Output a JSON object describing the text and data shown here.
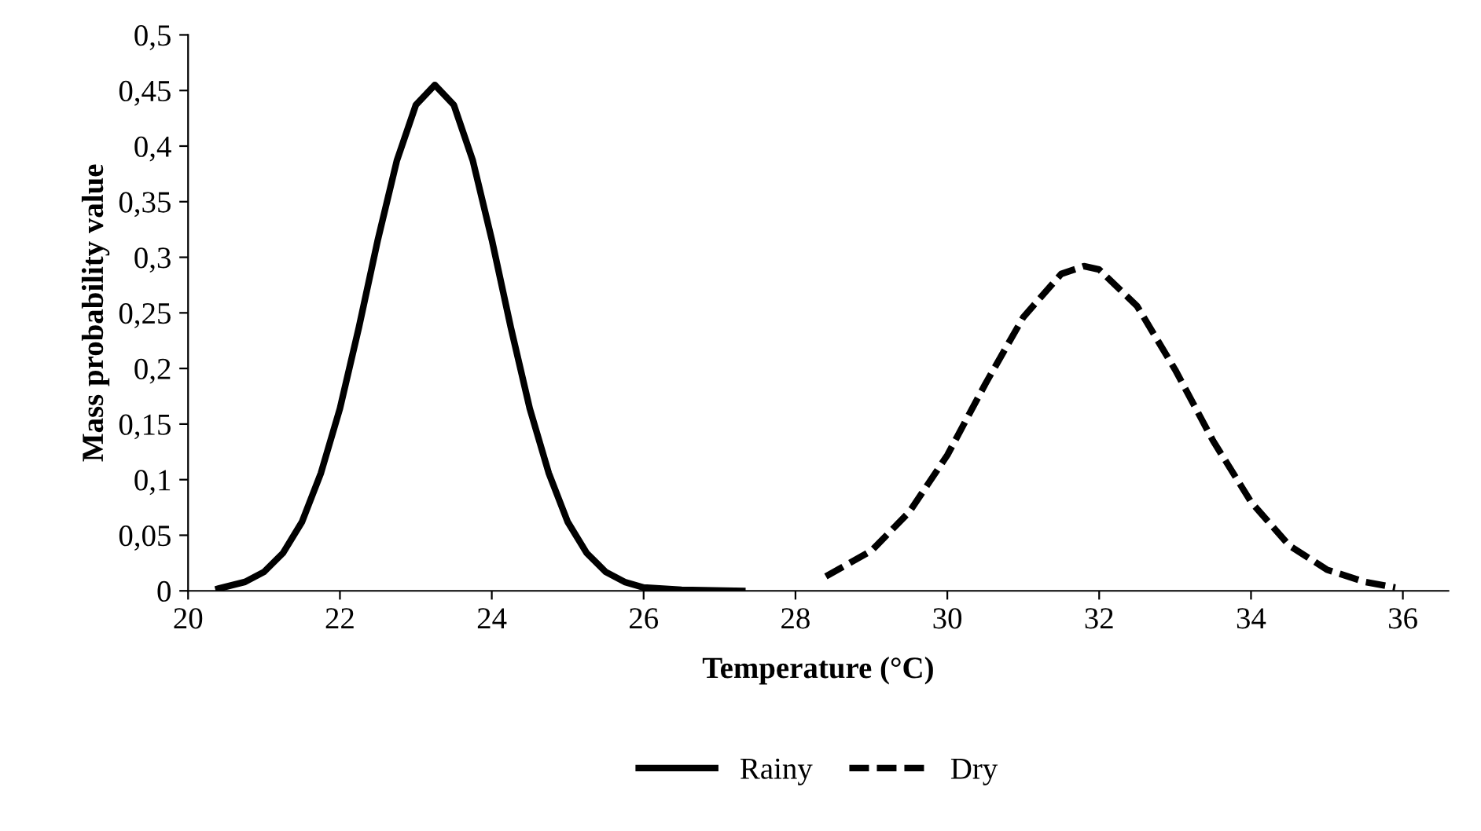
{
  "chart_data": {
    "type": "line",
    "xlabel": "Temperature (°C)",
    "ylabel": "Mass probability value",
    "xlim": [
      20,
      36.6
    ],
    "ylim": [
      0,
      0.5
    ],
    "xticks": [
      20,
      22,
      24,
      26,
      28,
      30,
      32,
      34,
      36
    ],
    "yticks": [
      0,
      {
        "value": 0.05,
        "label": "0,05"
      },
      {
        "value": 0.1,
        "label": "0,1"
      },
      {
        "value": 0.15,
        "label": "0,15"
      },
      {
        "value": 0.2,
        "label": "0,2"
      },
      {
        "value": 0.25,
        "label": "0,25"
      },
      {
        "value": 0.3,
        "label": "0,3"
      },
      {
        "value": 0.35,
        "label": "0,35"
      },
      {
        "value": 0.4,
        "label": "0,4"
      },
      {
        "value": 0.45,
        "label": "0,45"
      },
      {
        "value": 0.5,
        "label": "0,5"
      }
    ],
    "grid": false,
    "legend": "bottom",
    "marker": "none",
    "series": [
      {
        "name": "Rainy",
        "color": "#000000",
        "line_style": "solid",
        "x": [
          20.4,
          20.75,
          21.0,
          21.25,
          21.5,
          21.75,
          22.0,
          22.25,
          22.5,
          22.75,
          23.0,
          23.25,
          23.5,
          23.75,
          24.0,
          24.25,
          24.5,
          24.75,
          25.0,
          25.25,
          25.5,
          25.75,
          26.0,
          26.5,
          27.3
        ],
        "values": [
          0.002,
          0.008,
          0.017,
          0.034,
          0.062,
          0.106,
          0.164,
          0.237,
          0.316,
          0.387,
          0.437,
          0.455,
          0.437,
          0.387,
          0.316,
          0.237,
          0.164,
          0.106,
          0.062,
          0.034,
          0.017,
          0.008,
          0.003,
          0.001,
          0
        ]
      },
      {
        "name": "Dry",
        "color": "#000000",
        "line_style": "dashed",
        "x": [
          28.4,
          29.0,
          29.5,
          30.0,
          30.5,
          31.0,
          31.5,
          31.8,
          32.0,
          32.5,
          33.0,
          33.5,
          34.0,
          34.5,
          35.0,
          35.5,
          35.9
        ],
        "values": [
          0.013,
          0.036,
          0.071,
          0.122,
          0.186,
          0.246,
          0.285,
          0.292,
          0.289,
          0.256,
          0.199,
          0.135,
          0.08,
          0.041,
          0.019,
          0.008,
          0.003
        ]
      }
    ]
  }
}
